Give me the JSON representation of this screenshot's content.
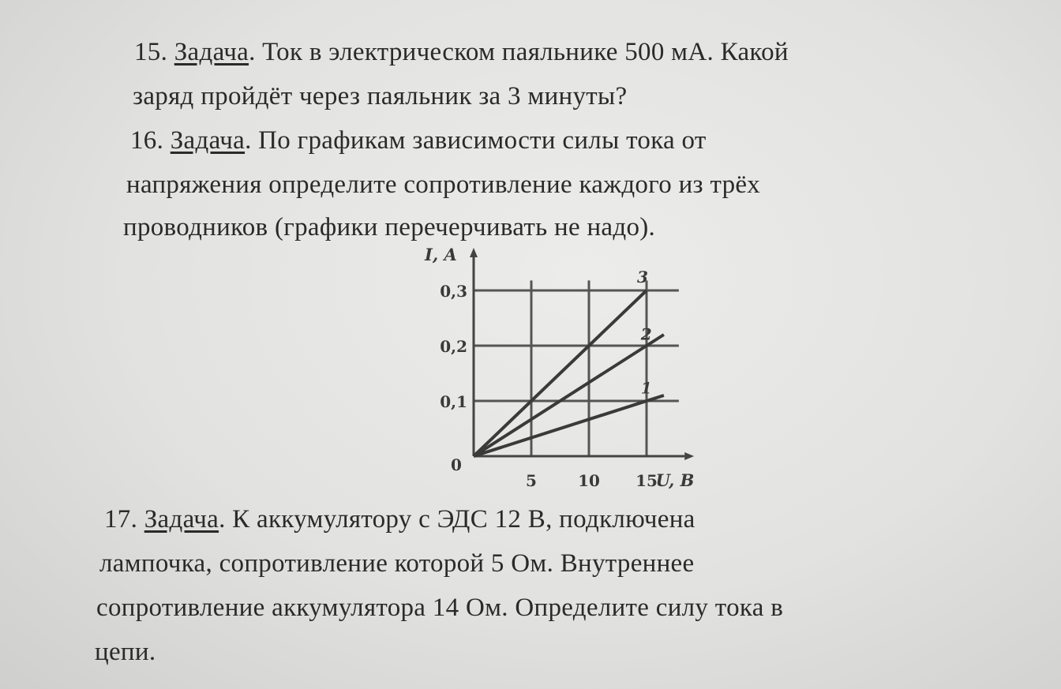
{
  "problems": [
    {
      "number": "15.",
      "label": "Задача",
      "lines": [
        "Ток в электрическом паяльнике 500 мА. Какой",
        "заряд пройдёт через паяльник за 3 минуты?"
      ]
    },
    {
      "number": "16.",
      "label": "Задача",
      "lines": [
        "По графикам зависимости силы тока от",
        "напряжения определите сопротивление каждого из трёх",
        "проводников (графики перечерчивать не надо)."
      ]
    },
    {
      "number": "17.",
      "label": "Задача",
      "lines": [
        "К аккумулятору с ЭДС 12 В, подключена",
        "лампочка, сопротивление которой 5 Ом. Внутреннее",
        "сопротивление аккумулятора 14 Ом. Определите силу тока в",
        "цепи."
      ]
    }
  ],
  "chart_data": {
    "type": "line",
    "xlabel": "U, B",
    "ylabel": "I, A",
    "xlim": [
      0,
      17
    ],
    "ylim": [
      0,
      0.33
    ],
    "x_ticks": [
      "5",
      "10",
      "15"
    ],
    "x_tick_values": [
      5,
      10,
      15
    ],
    "y_ticks": [
      "0,1",
      "0,2",
      "0,3"
    ],
    "y_tick_values": [
      0.1,
      0.2,
      0.3
    ],
    "origin_label": "0",
    "grid": true,
    "series": [
      {
        "name": "1",
        "x": [
          0,
          16.5
        ],
        "y": [
          0,
          0.11
        ]
      },
      {
        "name": "2",
        "x": [
          0,
          16.5
        ],
        "y": [
          0,
          0.22
        ]
      },
      {
        "name": "3",
        "x": [
          0,
          15
        ],
        "y": [
          0,
          0.3
        ]
      }
    ]
  }
}
